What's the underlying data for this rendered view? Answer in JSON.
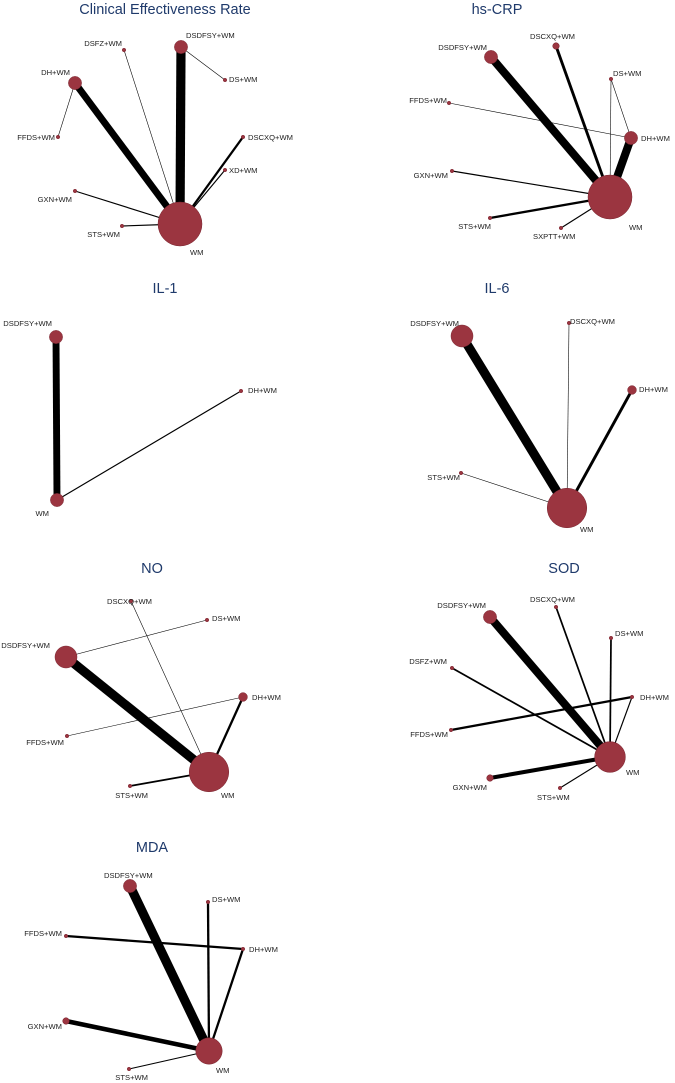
{
  "node_color": "#9b3540",
  "edge_color": "#000000",
  "title_color": "#1f3a6b",
  "panels": [
    {
      "title": "Clinical Effectiveness Rate",
      "nodes": [
        {
          "id": "DSDFSY+WM",
          "label": "DSDFSY+WM",
          "size": 3
        },
        {
          "id": "DS+WM",
          "label": "DS+WM",
          "size": 1
        },
        {
          "id": "DSCXQ+WM",
          "label": "DSCXQ+WM",
          "size": 1
        },
        {
          "id": "XD+WM",
          "label": "XD+WM",
          "size": 1
        },
        {
          "id": "WM",
          "label": "WM",
          "size": 10
        },
        {
          "id": "STS+WM",
          "label": "STS+WM",
          "size": 1
        },
        {
          "id": "GXN+WM",
          "label": "GXN+WM",
          "size": 1
        },
        {
          "id": "FFDS+WM",
          "label": "FFDS+WM",
          "size": 1
        },
        {
          "id": "DH+WM",
          "label": "DH+WM",
          "size": 3
        },
        {
          "id": "DSFZ+WM",
          "label": "DSFZ+WM",
          "size": 1
        }
      ],
      "edges": [
        {
          "source": "WM",
          "target": "DSDFSY+WM",
          "weight": 8
        },
        {
          "source": "WM",
          "target": "DH+WM",
          "weight": 6
        },
        {
          "source": "WM",
          "target": "DSCXQ+WM",
          "weight": 2
        },
        {
          "source": "WM",
          "target": "XD+WM",
          "weight": 1
        },
        {
          "source": "WM",
          "target": "DSFZ+WM",
          "weight": 0.5
        },
        {
          "source": "WM",
          "target": "GXN+WM",
          "weight": 1
        },
        {
          "source": "WM",
          "target": "STS+WM",
          "weight": 1
        },
        {
          "source": "DH+WM",
          "target": "FFDS+WM",
          "weight": 0.5
        },
        {
          "source": "DSDFSY+WM",
          "target": "DS+WM",
          "weight": 0.5
        }
      ]
    },
    {
      "title": "hs-CRP",
      "nodes": [
        {
          "id": "DSDFSY+WM",
          "label": "DSDFSY+WM",
          "size": 3
        },
        {
          "id": "DSCXQ+WM",
          "label": "DSCXQ+WM",
          "size": 1.5
        },
        {
          "id": "DS+WM",
          "label": "DS+WM",
          "size": 1
        },
        {
          "id": "DH+WM",
          "label": "DH+WM",
          "size": 3
        },
        {
          "id": "WM",
          "label": "WM",
          "size": 10
        },
        {
          "id": "SXPTT+WM",
          "label": "SXPTT+WM",
          "size": 1
        },
        {
          "id": "STS+WM",
          "label": "STS+WM",
          "size": 1
        },
        {
          "id": "GXN+WM",
          "label": "GXN+WM",
          "size": 1
        },
        {
          "id": "FFDS+WM",
          "label": "FFDS+WM",
          "size": 1
        }
      ],
      "edges": [
        {
          "source": "WM",
          "target": "DSDFSY+WM",
          "weight": 7
        },
        {
          "source": "WM",
          "target": "DH+WM",
          "weight": 7
        },
        {
          "source": "WM",
          "target": "DSCXQ+WM",
          "weight": 2.5
        },
        {
          "source": "WM",
          "target": "DS+WM",
          "weight": 0.5
        },
        {
          "source": "WM",
          "target": "GXN+WM",
          "weight": 1
        },
        {
          "source": "WM",
          "target": "STS+WM",
          "weight": 2
        },
        {
          "source": "WM",
          "target": "SXPTT+WM",
          "weight": 1
        },
        {
          "source": "DH+WM",
          "target": "DS+WM",
          "weight": 0.5
        },
        {
          "source": "DH+WM",
          "target": "FFDS+WM",
          "weight": 0.5
        }
      ]
    },
    {
      "title": "IL-1",
      "nodes": [
        {
          "id": "DSDFSY+WM",
          "label": "DSDFSY+WM",
          "size": 3
        },
        {
          "id": "DH+WM",
          "label": "DH+WM",
          "size": 1
        },
        {
          "id": "WM",
          "label": "WM",
          "size": 3
        }
      ],
      "edges": [
        {
          "source": "WM",
          "target": "DSDFSY+WM",
          "weight": 6
        },
        {
          "source": "WM",
          "target": "DH+WM",
          "weight": 1
        }
      ]
    },
    {
      "title": "IL-6",
      "nodes": [
        {
          "id": "DSCXQ+WM",
          "label": "DSCXQ+WM",
          "size": 1
        },
        {
          "id": "DSDFSY+WM",
          "label": "DSDFSY+WM",
          "size": 5
        },
        {
          "id": "DH+WM",
          "label": "DH+WM",
          "size": 2
        },
        {
          "id": "WM",
          "label": "WM",
          "size": 9
        },
        {
          "id": "STS+WM",
          "label": "STS+WM",
          "size": 1
        }
      ],
      "edges": [
        {
          "source": "WM",
          "target": "DSDFSY+WM",
          "weight": 8
        },
        {
          "source": "WM",
          "target": "DH+WM",
          "weight": 2.5
        },
        {
          "source": "WM",
          "target": "DSCXQ+WM",
          "weight": 0.5
        },
        {
          "source": "WM",
          "target": "STS+WM",
          "weight": 0.5
        }
      ]
    },
    {
      "title": "NO",
      "nodes": [
        {
          "id": "DSCXQ+WM",
          "label": "DSCXQ+WM",
          "size": 1
        },
        {
          "id": "DS+WM",
          "label": "DS+WM",
          "size": 1
        },
        {
          "id": "DSDFSY+WM",
          "label": "DSDFSY+WM",
          "size": 5
        },
        {
          "id": "DH+WM",
          "label": "DH+WM",
          "size": 2
        },
        {
          "id": "FFDS+WM",
          "label": "FFDS+WM",
          "size": 1
        },
        {
          "id": "WM",
          "label": "WM",
          "size": 9
        },
        {
          "id": "STS+WM",
          "label": "STS+WM",
          "size": 1
        }
      ],
      "edges": [
        {
          "source": "WM",
          "target": "DSDFSY+WM",
          "weight": 8
        },
        {
          "source": "WM",
          "target": "DH+WM",
          "weight": 2
        },
        {
          "source": "WM",
          "target": "DSCXQ+WM",
          "weight": 0.5
        },
        {
          "source": "WM",
          "target": "STS+WM",
          "weight": 1.5
        },
        {
          "source": "DSDFSY+WM",
          "target": "DS+WM",
          "weight": 0.5
        },
        {
          "source": "DH+WM",
          "target": "FFDS+WM",
          "weight": 0.5
        }
      ]
    },
    {
      "title": "SOD",
      "nodes": [
        {
          "id": "DSDFSY+WM",
          "label": "DSDFSY+WM",
          "size": 3
        },
        {
          "id": "DSCXQ+WM",
          "label": "DSCXQ+WM",
          "size": 1
        },
        {
          "id": "DS+WM",
          "label": "DS+WM",
          "size": 1
        },
        {
          "id": "DSFZ+WM",
          "label": "DSFZ+WM",
          "size": 1
        },
        {
          "id": "DH+WM",
          "label": "DH+WM",
          "size": 1
        },
        {
          "id": "FFDS+WM",
          "label": "FFDS+WM",
          "size": 1
        },
        {
          "id": "WM",
          "label": "WM",
          "size": 7
        },
        {
          "id": "GXN+WM",
          "label": "GXN+WM",
          "size": 1.5
        },
        {
          "id": "STS+WM",
          "label": "STS+WM",
          "size": 1
        }
      ],
      "edges": [
        {
          "source": "WM",
          "target": "DSDFSY+WM",
          "weight": 7
        },
        {
          "source": "WM",
          "target": "DSCXQ+WM",
          "weight": 1.5
        },
        {
          "source": "WM",
          "target": "DS+WM",
          "weight": 1.5
        },
        {
          "source": "WM",
          "target": "DSFZ+WM",
          "weight": 1.5
        },
        {
          "source": "WM",
          "target": "DH+WM",
          "weight": 1
        },
        {
          "source": "WM",
          "target": "GXN+WM",
          "weight": 3.5
        },
        {
          "source": "WM",
          "target": "STS+WM",
          "weight": 1
        },
        {
          "source": "DH+WM",
          "target": "FFDS+WM",
          "weight": 2
        }
      ]
    },
    {
      "title": "MDA",
      "nodes": [
        {
          "id": "DSDFSY+WM",
          "label": "DSDFSY+WM",
          "size": 3
        },
        {
          "id": "DS+WM",
          "label": "DS+WM",
          "size": 1
        },
        {
          "id": "FFDS+WM",
          "label": "FFDS+WM",
          "size": 1
        },
        {
          "id": "DH+WM",
          "label": "DH+WM",
          "size": 1
        },
        {
          "id": "GXN+WM",
          "label": "GXN+WM",
          "size": 1.5
        },
        {
          "id": "WM",
          "label": "WM",
          "size": 6
        },
        {
          "id": "STS+WM",
          "label": "STS+WM",
          "size": 1
        }
      ],
      "edges": [
        {
          "source": "WM",
          "target": "DSDFSY+WM",
          "weight": 8
        },
        {
          "source": "WM",
          "target": "DS+WM",
          "weight": 2
        },
        {
          "source": "WM",
          "target": "DH+WM",
          "weight": 2
        },
        {
          "source": "WM",
          "target": "GXN+WM",
          "weight": 4
        },
        {
          "source": "WM",
          "target": "STS+WM",
          "weight": 1
        },
        {
          "source": "DH+WM",
          "target": "FFDS+WM",
          "weight": 2
        }
      ]
    }
  ]
}
